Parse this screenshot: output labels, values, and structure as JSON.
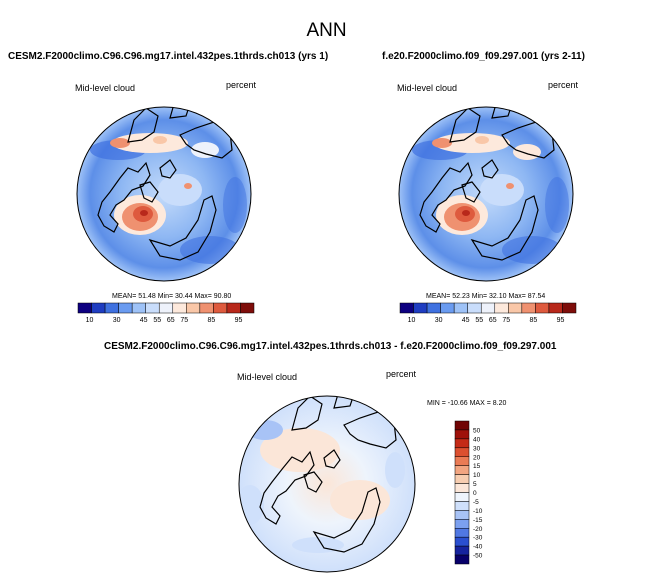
{
  "title": "ANN",
  "palette": {
    "sequential": [
      "#0d0080",
      "#1f3dc1",
      "#3f71e0",
      "#6a9bf0",
      "#9ec2f7",
      "#c9ddfb",
      "#eef2fb",
      "#fde9dc",
      "#f9c7a8",
      "#ef9170",
      "#de5a3e",
      "#b8281b",
      "#7e0d0a"
    ],
    "difference": [
      "#08006a",
      "#16239e",
      "#2a4fd0",
      "#5078e3",
      "#7ca0ef",
      "#a8c3f6",
      "#cfe0fb",
      "#eef4fc",
      "#fbe6d8",
      "#f7cdb0",
      "#f2a581",
      "#ea7b55",
      "#dc5030",
      "#c42a17",
      "#9f110a",
      "#700404"
    ]
  },
  "panels": {
    "left": {
      "case_title": "CESM2.F2000climo.C96.C96.mg17.intel.432pes.1thrds.ch013 (yrs 1)",
      "variable": "Mid-level cloud",
      "units": "percent",
      "stats": "MEAN= 51.48 Min= 30.44 Max= 90.80",
      "colorbar_labels": [
        "10",
        "30",
        "45",
        "55",
        "65",
        "75",
        "85",
        "95"
      ]
    },
    "right": {
      "case_title": "f.e20.F2000climo.f09_f09.297.001 (yrs 2-11)",
      "variable": "Mid-level cloud",
      "units": "percent",
      "stats": "MEAN= 52.23 Min= 32.10 Max= 87.54",
      "colorbar_labels": [
        "10",
        "30",
        "45",
        "55",
        "65",
        "75",
        "85",
        "95"
      ]
    },
    "diff": {
      "case_title": "CESM2.F2000climo.C96.C96.mg17.intel.432pes.1thrds.ch013 - f.e20.F2000climo.f09_f09.297.001",
      "variable": "Mid-level cloud",
      "units": "percent",
      "stats": "MIN = -10.66 MAX = 8.20",
      "colorbar_labels": [
        "50",
        "40",
        "30",
        "20",
        "15",
        "10",
        "5",
        "0",
        "-5",
        "-10",
        "-15",
        "-20",
        "-30",
        "-40",
        "-50"
      ]
    }
  }
}
